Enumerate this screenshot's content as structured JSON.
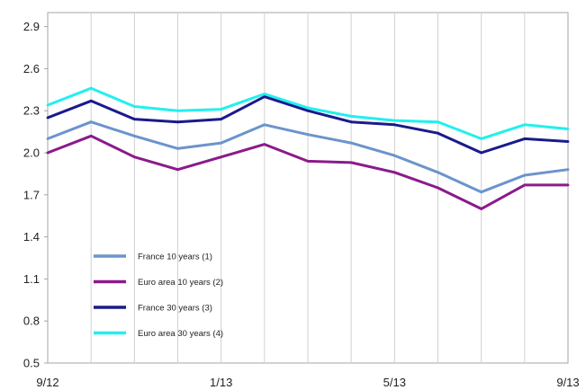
{
  "chart_data": {
    "type": "line",
    "title": "",
    "xlabel": "",
    "ylabel": "",
    "ylim": [
      0.5,
      3.0
    ],
    "y_ticks": [
      "2.9",
      "2.6",
      "2.3",
      "2.0",
      "1.7",
      "1.4",
      "1.1",
      "0.8",
      "0.5"
    ],
    "x_ticks": [
      "9/12",
      "1/13",
      "5/13",
      "9/13"
    ],
    "x_range": [
      "2012-09",
      "2013-09"
    ],
    "grid": "vertical",
    "legend_position": "bottom-left inside plot",
    "series": [
      {
        "name": "France 10 years (1)",
        "color": "#6b94cc",
        "x": [
          "2012-09",
          "2012-10",
          "2012-11",
          "2012-12",
          "2013-01",
          "2013-02",
          "2013-03",
          "2013-04",
          "2013-05",
          "2013-06",
          "2013-07",
          "2013-08",
          "2013-09"
        ],
        "values": [
          2.1,
          2.22,
          2.12,
          2.03,
          2.07,
          2.2,
          2.13,
          2.07,
          1.98,
          1.86,
          1.72,
          1.84,
          1.88
        ]
      },
      {
        "name": "Euro area 10 years (2)",
        "color": "#8b1a8b",
        "x": [
          "2012-09",
          "2012-10",
          "2012-11",
          "2012-12",
          "2013-01",
          "2013-02",
          "2013-03",
          "2013-04",
          "2013-05",
          "2013-06",
          "2013-07",
          "2013-08",
          "2013-09"
        ],
        "values": [
          2.0,
          2.12,
          1.97,
          1.88,
          1.97,
          2.06,
          1.94,
          1.93,
          1.86,
          1.75,
          1.6,
          1.77,
          1.77
        ]
      },
      {
        "name": "France 30 years (3)",
        "color": "#1a1a8c",
        "x": [
          "2012-09",
          "2012-10",
          "2012-11",
          "2012-12",
          "2013-01",
          "2013-02",
          "2013-03",
          "2013-04",
          "2013-05",
          "2013-06",
          "2013-07",
          "2013-08",
          "2013-09"
        ],
        "values": [
          2.25,
          2.37,
          2.24,
          2.22,
          2.24,
          2.4,
          2.3,
          2.22,
          2.2,
          2.14,
          2.0,
          2.1,
          2.08
        ]
      },
      {
        "name": "Euro area 30 years (4)",
        "color": "#22f0ee",
        "x": [
          "2012-09",
          "2012-10",
          "2012-11",
          "2012-12",
          "2013-01",
          "2013-02",
          "2013-03",
          "2013-04",
          "2013-05",
          "2013-06",
          "2013-07",
          "2013-08",
          "2013-09"
        ],
        "values": [
          2.34,
          2.46,
          2.33,
          2.3,
          2.31,
          2.42,
          2.32,
          2.26,
          2.23,
          2.22,
          2.1,
          2.2,
          2.17
        ]
      }
    ]
  }
}
